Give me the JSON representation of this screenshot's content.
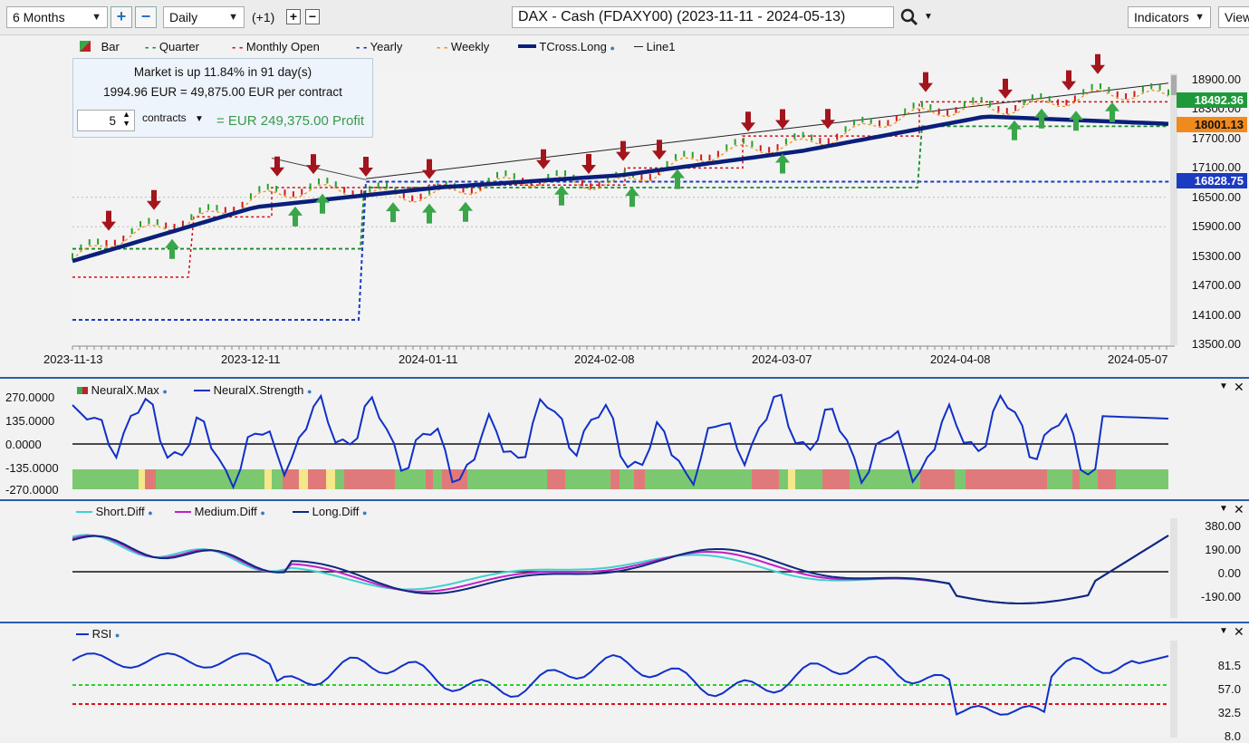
{
  "toolbar": {
    "period": "6 Months",
    "interval": "Daily",
    "offset": "(+1)",
    "symbol_title": "DAX - Cash (FDAXY00) (2023-11-11 - 2024-05-13)",
    "indicators_label": "Indicators",
    "view_label": "View"
  },
  "legend": {
    "bar": "Bar",
    "quarter": "Quarter",
    "monthly_open": "Monthly Open",
    "yearly": "Yearly",
    "weekly": "Weekly",
    "tcross": "TCross.Long",
    "line1": "Line1"
  },
  "info_box": {
    "line1": "Market is up 11.84% in 91 day(s)",
    "line2": "1994.96 EUR = 49,875.00 EUR per contract",
    "contracts_value": "5",
    "contracts_label": "contracts",
    "profit": "= EUR 249,375.00 Profit"
  },
  "price_tags": {
    "green": "18492.36",
    "orange": "18001.13",
    "blue": "16828.75"
  },
  "price_axis": [
    "18900.00",
    "18300.00",
    "17700.00",
    "17100.00",
    "16500.00",
    "15900.00",
    "15300.00",
    "14700.00",
    "14100.00",
    "13500.00"
  ],
  "date_axis": [
    "2023-11-13",
    "2023-12-11",
    "2024-01-11",
    "2024-02-08",
    "2024-03-07",
    "2024-04-08",
    "2024-05-07"
  ],
  "neural_panel": {
    "legend_max": "NeuralX.Max",
    "legend_strength": "NeuralX.Strength",
    "axis": [
      "270.0000",
      "135.0000",
      "0.0000",
      "-135.0000",
      "-270.0000"
    ]
  },
  "diff_panel": {
    "legend_short": "Short.Diff",
    "legend_medium": "Medium.Diff",
    "legend_long": "Long.Diff",
    "axis": [
      "380.00",
      "190.00",
      "0.00",
      "-190.00"
    ]
  },
  "rsi_panel": {
    "legend": "RSI",
    "axis": [
      "81.5",
      "57.0",
      "32.5",
      "8.0"
    ]
  },
  "colors": {
    "accent_blue": "#2a5ea8",
    "bull_green": "#3aa64a",
    "bear_red": "#b0202a",
    "tcross_navy": "#0a1f7a",
    "orange_tag": "#f08a1c",
    "green_tag": "#1f9a3a"
  },
  "chart_data": {
    "type": "line",
    "title": "DAX - Cash (FDAXY00) (2023-11-11 - 2024-05-13)",
    "xlabel": "",
    "ylabel": "",
    "ylim": [
      13500,
      18900
    ],
    "x": [
      "2023-11-13",
      "2023-12-11",
      "2024-01-11",
      "2024-02-08",
      "2024-03-07",
      "2024-04-08",
      "2024-05-07"
    ],
    "series": [
      {
        "name": "TCross.Long",
        "values": [
          15200,
          16300,
          16700,
          16950,
          17450,
          18150,
          18000
        ]
      },
      {
        "name": "Bar",
        "values": [
          15300,
          16600,
          16700,
          16950,
          17750,
          18450,
          18650
        ]
      }
    ]
  }
}
